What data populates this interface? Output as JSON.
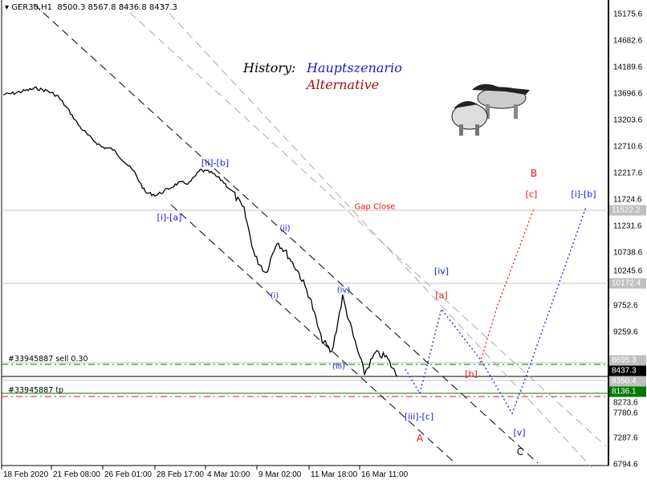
{
  "header": {
    "symbol": "GER30,H1",
    "ohlc": "8500.3 8567.8 8436.8 8437.3"
  },
  "legend": {
    "history": "History:",
    "main": "Hauptszenario",
    "alt": "Alternative",
    "main_color": "#1a1acc",
    "alt_color": "#a01010"
  },
  "price_axis": [
    "15175.6",
    "14682.6",
    "14189.6",
    "13696.6",
    "13203.6",
    "12710.6",
    "12217.6",
    "11724.6",
    "11231.6",
    "10738.6",
    "10245.6",
    "9752.6",
    "9259.6",
    "8766.6",
    "8273.6",
    "7780.6",
    "7287.6",
    "6794.6"
  ],
  "price_tags": [
    {
      "value": "11522.2",
      "color": "#c0c0c0"
    },
    {
      "value": "10172.4",
      "color": "#c0c0c0"
    },
    {
      "value": "8695.3",
      "color": "#c0c0c0"
    },
    {
      "value": "8437.3",
      "color": "#000000"
    },
    {
      "value": "8350.4",
      "color": "#c0c0c0"
    },
    {
      "value": "8136.1",
      "color": "#007a00"
    }
  ],
  "time_axis": [
    "18 Feb 2020",
    "21 Feb 08:00",
    "26 Feb 01:00",
    "28 Feb 17:00",
    "4 Mar 10:00",
    "9 Mar 02:00",
    "11 Mar 18:00",
    "16 Mar 11:00"
  ],
  "orders": {
    "sell": "#33945887 sell 0.30",
    "tp": "#33945887 tp"
  },
  "gap_close": "Gap Close",
  "wave_labels": {
    "ii_b": "[ii]-[b]",
    "i_a": "[i]-[a]",
    "ii": "(ii)",
    "i": "(i)",
    "iv": "(iv)",
    "iii": "(iii)",
    "iii_c": "[iii]-[c]",
    "A": "A",
    "iv_sq": "[iv]",
    "a_sq": "[a]",
    "b_sq": "[b]",
    "v_sq": "[v]",
    "C": "C",
    "c_sq": "[c]",
    "B": "B",
    "i_b": "[i]-[b]"
  },
  "colors": {
    "blue": "#1a1aee",
    "red": "#ee1111",
    "green": "#007a00"
  },
  "chart_data": {
    "type": "line",
    "symbol": "GER30",
    "timeframe": "H1",
    "ylim": [
      6794.6,
      15175.6
    ],
    "close_path": [
      13682,
      13711,
      13756,
      13801,
      13756,
      13652,
      13383,
      13084,
      12875,
      12710,
      12666,
      12456,
      12232,
      11859,
      11814,
      11918,
      12038,
      12038,
      12277,
      12232,
      12083,
      11859,
      11530,
      10664,
      10365,
      10962,
      10694,
      10365,
      9917,
      9169,
      8870,
      9917,
      9169,
      8497,
      8870,
      8796,
      8437
    ]
  }
}
